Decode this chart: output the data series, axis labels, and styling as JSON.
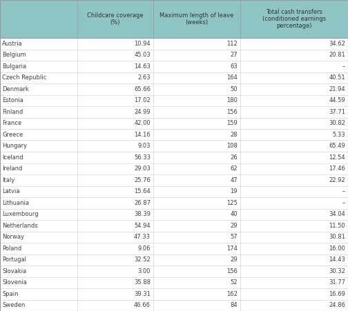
{
  "col_headers": [
    "Childcare coverage\n(%)",
    "Maximum length of leave\n(weeks)",
    "Total cash transfers\n(conditioned earnings\npercentage)"
  ],
  "countries": [
    "Austria",
    "Belgium",
    "Bulgaria",
    "Czech Republic",
    "Denmark",
    "Estonia",
    "Finland",
    "France",
    "Greece",
    "Hungary",
    "Iceland",
    "Ireland",
    "Italy",
    "Latvia",
    "Lithuania",
    "Luxembourg",
    "Netherlands",
    "Norway",
    "Poland",
    "Portugal",
    "Slovakia",
    "Slovenia",
    "Spain",
    "Sweden"
  ],
  "childcare_coverage": [
    "10.94",
    "45.03",
    "14.63",
    "2.63",
    "65.66",
    "17.02",
    "24.99",
    "42.00",
    "14.16",
    "9.03",
    "56.33",
    "29.03",
    "25.76",
    "15.64",
    "26.87",
    "38.39",
    "54.94",
    "47.33",
    "9.06",
    "32.52",
    "3.00",
    "35.88",
    "39.31",
    "46.66"
  ],
  "max_leave": [
    "112",
    "27",
    "63",
    "164",
    "50",
    "180",
    "156",
    "159",
    "28",
    "108",
    "26",
    "62",
    "47",
    "19",
    "125",
    "40",
    "29",
    "57",
    "174",
    "29",
    "156",
    "52",
    "162",
    "84"
  ],
  "total_cash": [
    "34.62",
    "20.81",
    "–",
    "40.51",
    "21.94",
    "44.59",
    "37.71",
    "30.82",
    "5.33",
    "65.49",
    "12.54",
    "17.46",
    "22.92",
    "–",
    "–",
    "34.04",
    "11.50",
    "30.81",
    "16.00",
    "14.43",
    "30.32",
    "31.77",
    "16.69",
    "24.86"
  ],
  "header_bg": "#8ec4c4",
  "text_color": "#404040",
  "header_text_color": "#333333"
}
